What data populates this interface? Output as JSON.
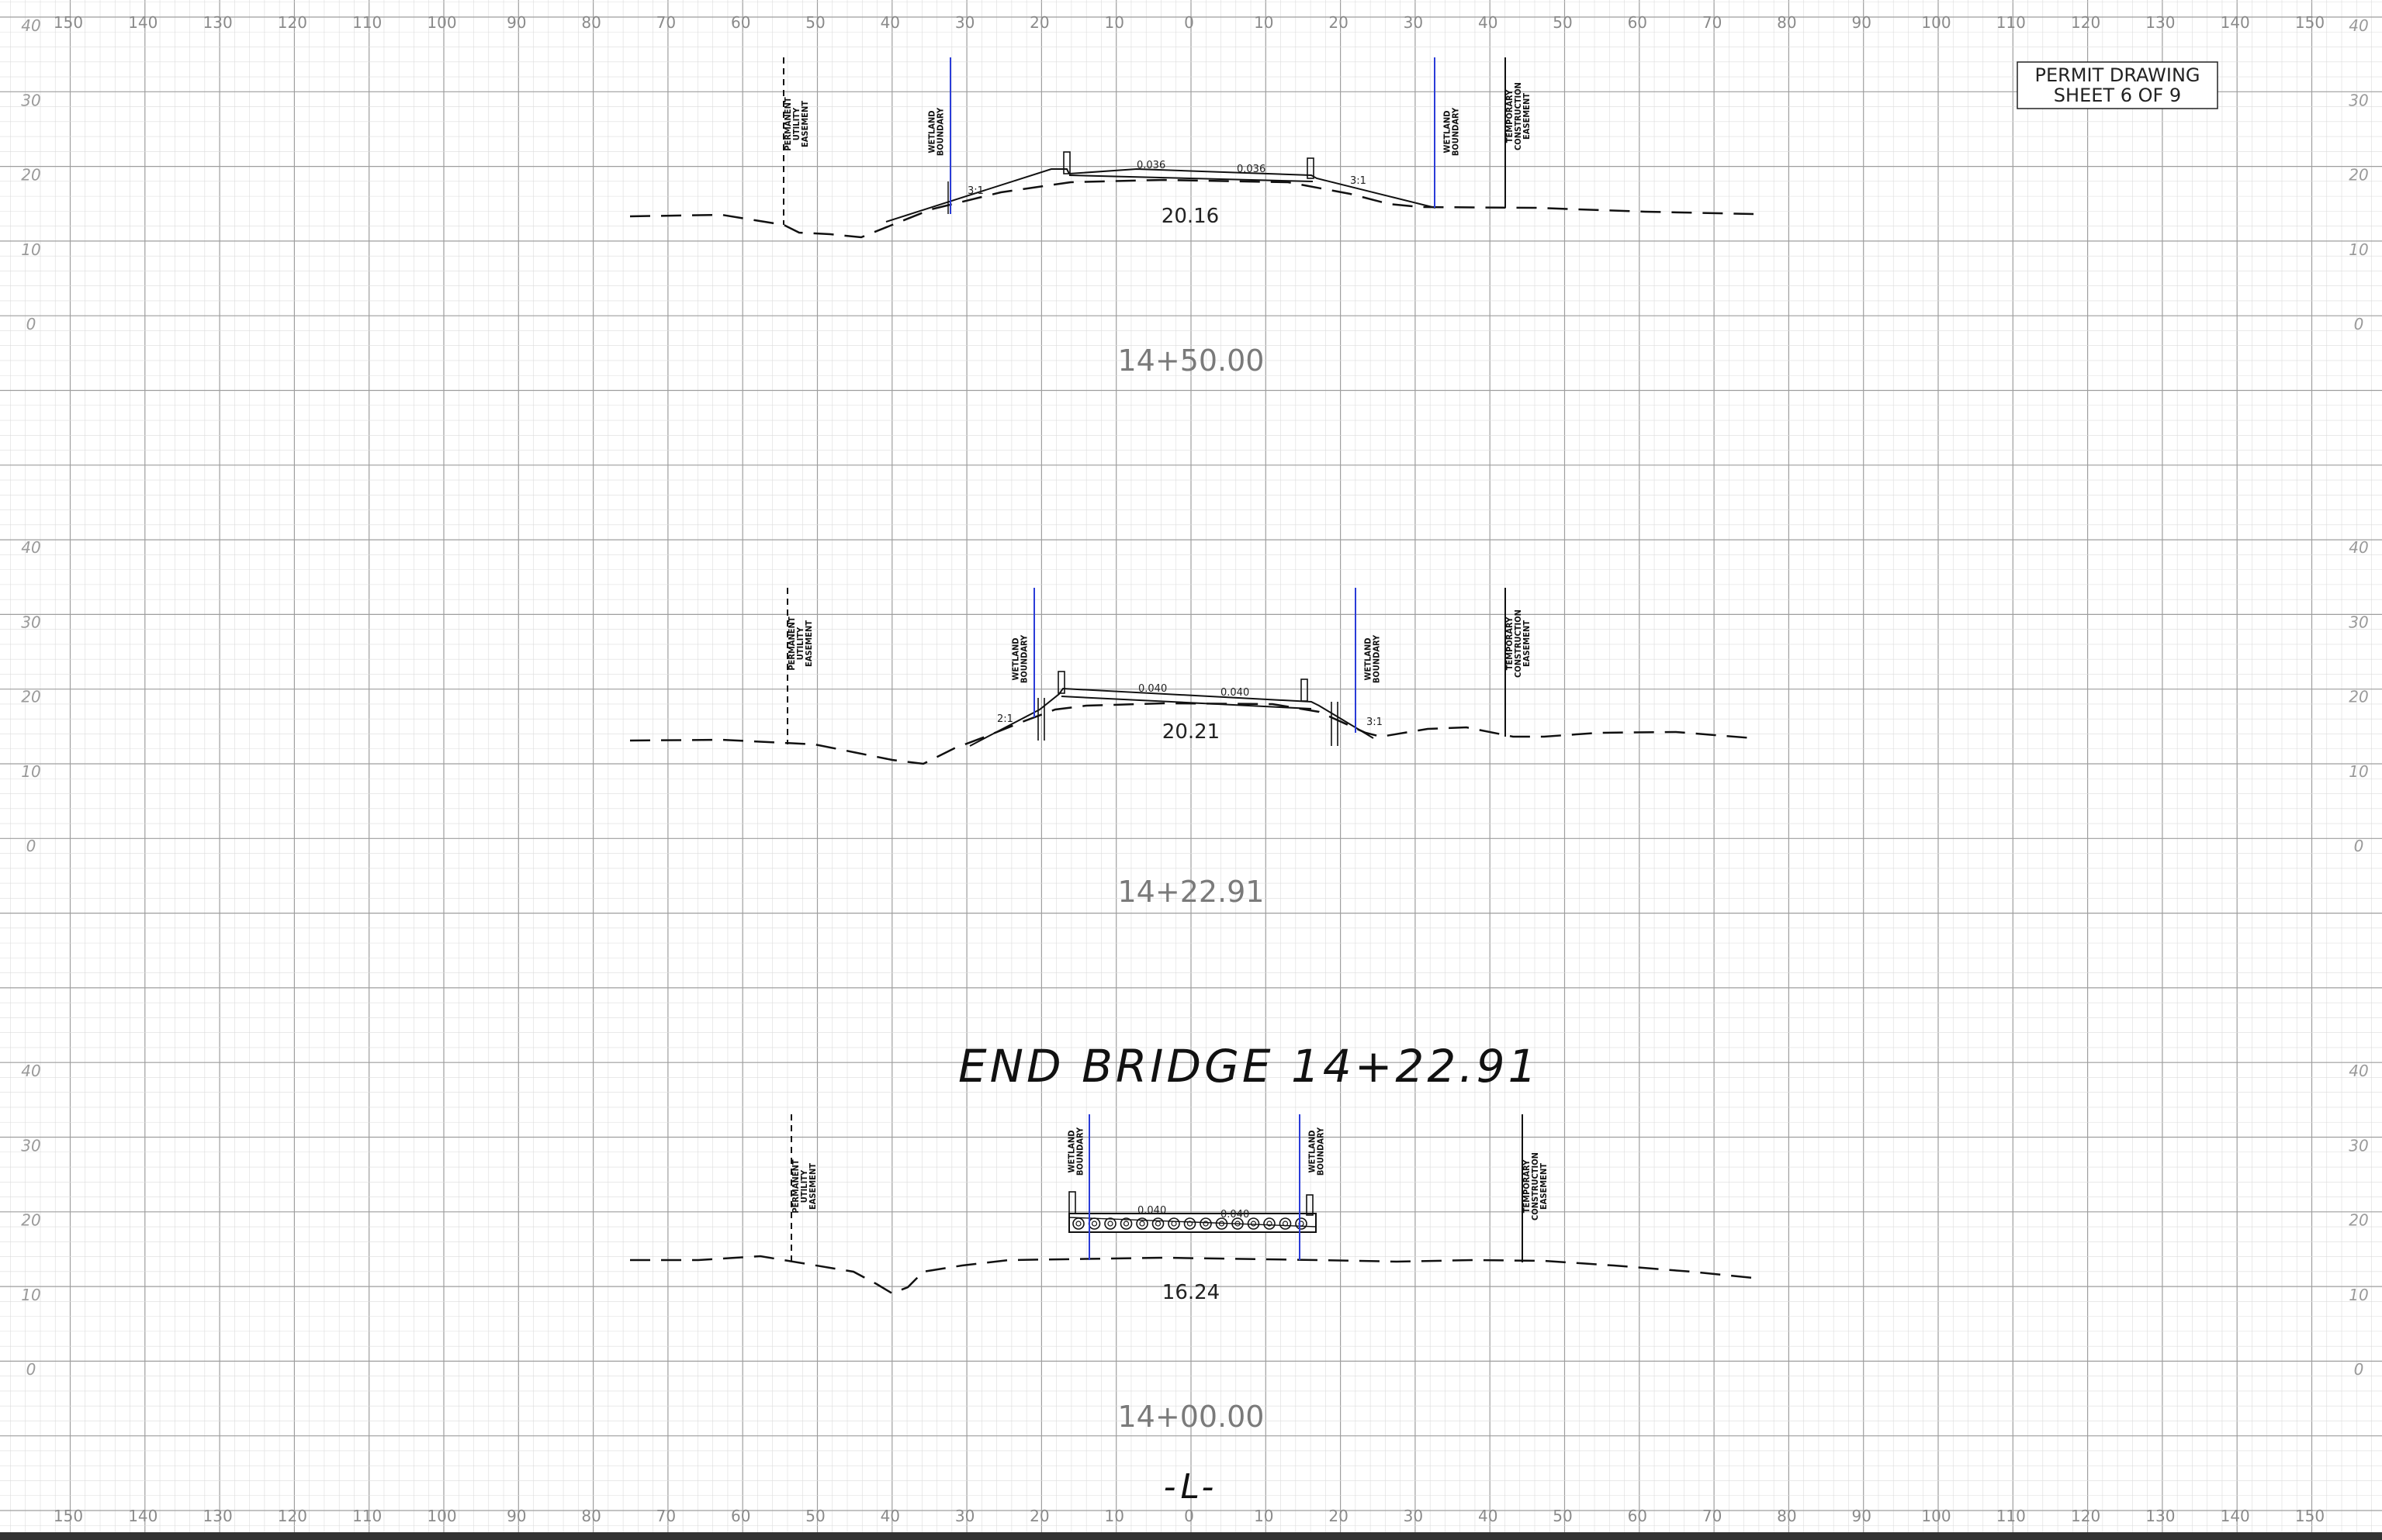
{
  "sheet": {
    "permit_line1": "PERMIT DRAWING",
    "permit_line2": "SHEET 6 OF 9",
    "alignment_label": "-L-",
    "end_bridge_note": "END BRIDGE 14+22.91"
  },
  "axes": {
    "offsets": [
      150,
      140,
      130,
      120,
      110,
      100,
      90,
      80,
      70,
      60,
      50,
      40,
      30,
      20,
      10,
      0,
      10,
      20,
      30,
      40,
      50,
      60,
      70,
      80,
      90,
      100,
      110,
      120,
      130,
      140,
      150
    ],
    "elevations": [
      "40",
      "30",
      "20",
      "10",
      "0"
    ]
  },
  "labels": {
    "permanent_utility_easement": [
      "PERMANENT",
      "UTILITY",
      "EASEMENT"
    ],
    "wetland_boundary": [
      "WETLAND",
      "BOUNDARY"
    ],
    "temporary_construction_easement": [
      "TEMPORARY",
      "CONSTRUCTION",
      "EASEMENT"
    ]
  },
  "sections": [
    {
      "station": "14+50.00",
      "elevation": "20.16",
      "slope_left": "0.036",
      "slope_right": "0.036",
      "side_slope_left": "3:1",
      "side_slope_right": "3:1"
    },
    {
      "station": "14+22.91",
      "elevation": "20.21",
      "slope_left": "0.040",
      "slope_right": "0.040",
      "side_slope_left": "2:1",
      "side_slope_right": "3:1"
    },
    {
      "station": "14+00.00",
      "elevation": "16.24",
      "slope_left": "0.040",
      "slope_right": "0.040"
    }
  ],
  "colors": {
    "grid_minor": "#dcdcdc",
    "grid_major": "#9e9e9e",
    "wetland": "#2a3cd8",
    "ink": "#111111"
  }
}
